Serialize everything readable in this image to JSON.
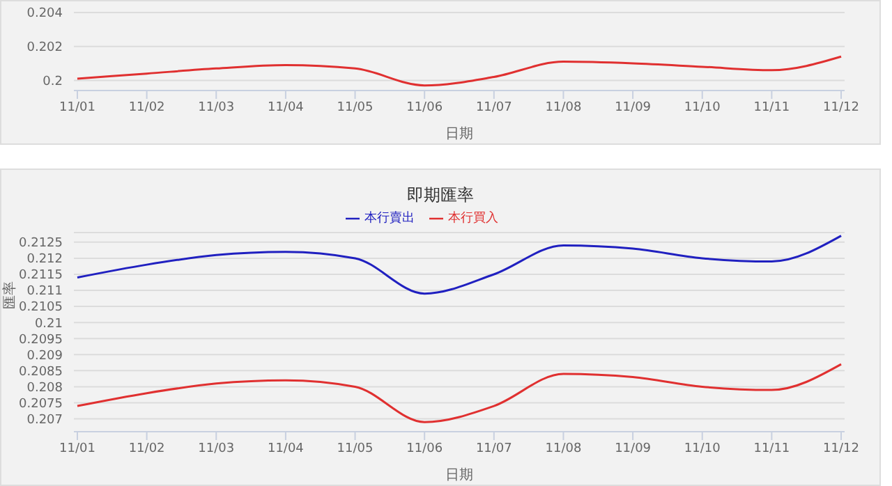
{
  "chart_data": [
    {
      "type": "line",
      "xlabel": "日期",
      "categories": [
        "11/01",
        "11/02",
        "11/03",
        "11/04",
        "11/05",
        "11/06",
        "11/07",
        "11/08",
        "11/09",
        "11/10",
        "11/11",
        "11/12"
      ],
      "series": [
        {
          "color": "#e03030",
          "values": [
            0.2001,
            0.2004,
            0.2007,
            0.2009,
            0.2007,
            0.1997,
            0.2002,
            0.2011,
            0.201,
            0.2008,
            0.2006,
            0.2014
          ]
        }
      ],
      "ylim": [
        0.1994,
        0.204
      ],
      "yticks": [
        0.2,
        0.202,
        0.204
      ],
      "grid": "y",
      "marker": "none"
    },
    {
      "type": "line",
      "title": "即期匯率",
      "xlabel": "日期",
      "ylabel": "匯率",
      "categories": [
        "11/01",
        "11/02",
        "11/03",
        "11/04",
        "11/05",
        "11/06",
        "11/07",
        "11/08",
        "11/09",
        "11/10",
        "11/11",
        "11/12"
      ],
      "series": [
        {
          "name": "本行賣出",
          "color": "#2020c0",
          "values": [
            0.2114,
            0.2118,
            0.2121,
            0.2122,
            0.212,
            0.2109,
            0.2115,
            0.2124,
            0.2123,
            0.212,
            0.2119,
            0.2127
          ]
        },
        {
          "name": "本行買入",
          "color": "#e03030",
          "values": [
            0.2074,
            0.2078,
            0.2081,
            0.2082,
            0.208,
            0.2069,
            0.2074,
            0.2084,
            0.2083,
            0.208,
            0.2079,
            0.2087
          ]
        }
      ],
      "ylim": [
        0.2066,
        0.2128
      ],
      "yticks": [
        0.207,
        0.2075,
        0.208,
        0.2085,
        0.209,
        0.2095,
        0.21,
        0.2105,
        0.211,
        0.2115,
        0.212,
        0.2125
      ],
      "grid": "y",
      "legend": "top",
      "marker": "none"
    }
  ]
}
